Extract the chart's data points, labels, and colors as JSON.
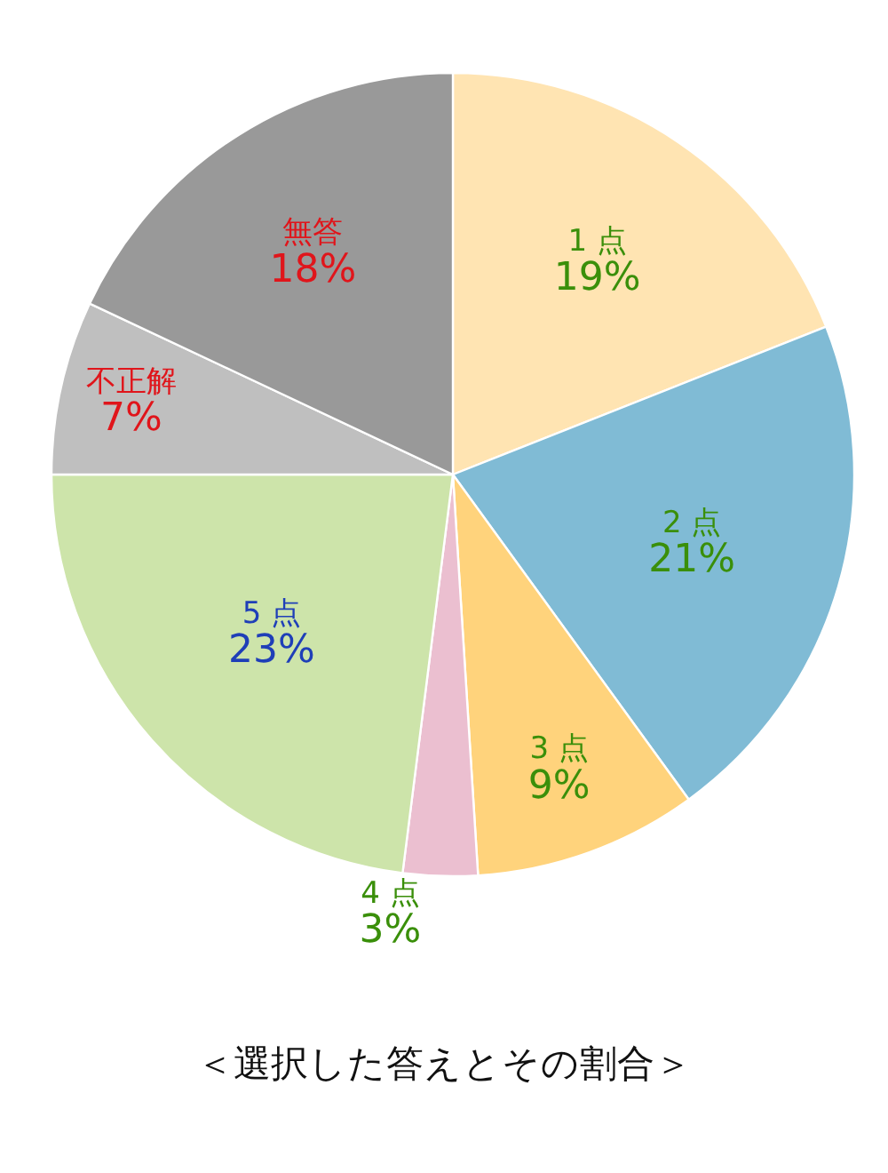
{
  "chart_data": {
    "type": "pie",
    "title": "＜選択した答えとその割合＞",
    "categories": [
      "1 点",
      "2 点",
      "3 点",
      "4 点",
      "5 点",
      "不正解",
      "無答"
    ],
    "values": [
      19,
      21,
      9,
      3,
      23,
      7,
      18
    ],
    "value_labels": [
      "19%",
      "21%",
      "9%",
      "3%",
      "23%",
      "7%",
      "18%"
    ],
    "colors": [
      "#ffe4b2",
      "#80bbd5",
      "#ffd37c",
      "#ebbfd0",
      "#cde4aa",
      "#bfbfbf",
      "#999999"
    ]
  }
}
